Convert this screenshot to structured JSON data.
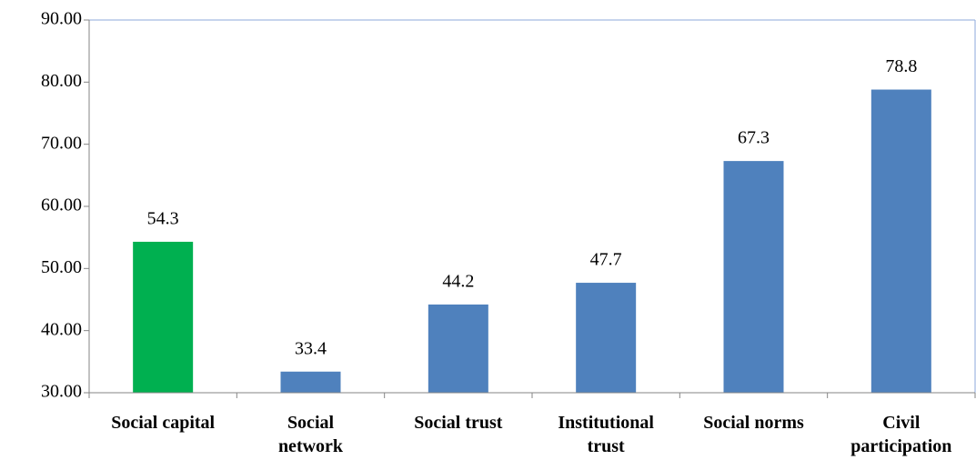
{
  "chart_data": {
    "type": "bar",
    "categories": [
      "Social capital",
      "Social\nnetwork",
      "Social trust",
      "Institutional\ntrust",
      "Social norms",
      "Civil\nparticipation"
    ],
    "values": [
      54.3,
      33.4,
      44.2,
      47.7,
      67.3,
      78.8
    ],
    "colors": [
      "#00b050",
      "#4f81bd",
      "#4f81bd",
      "#4f81bd",
      "#4f81bd",
      "#4f81bd"
    ],
    "ylim": [
      30,
      90
    ],
    "yticks": [
      {
        "value": 30,
        "label": "30.00"
      },
      {
        "value": 40,
        "label": "40.00"
      },
      {
        "value": 50,
        "label": "50.00"
      },
      {
        "value": 60,
        "label": "60.00"
      },
      {
        "value": 70,
        "label": "70.00"
      },
      {
        "value": 80,
        "label": "80.00"
      },
      {
        "value": 90,
        "label": "90.00"
      }
    ]
  }
}
